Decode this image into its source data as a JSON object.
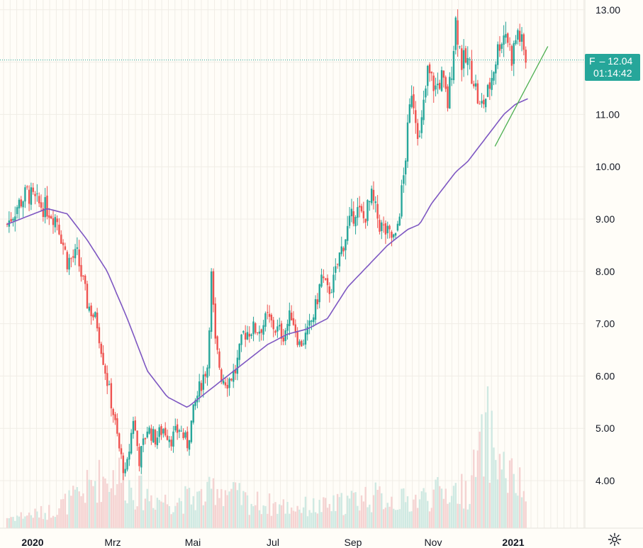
{
  "symbol": "F",
  "last_price_label": "12.04",
  "countdown": "01:14:42",
  "colors": {
    "up": "#26a69a",
    "down": "#ef5350",
    "ma": "#7e57c2",
    "trendline": "#4caf50",
    "last_price_line": "#26a69a",
    "vol_up": "#cfe9e2",
    "vol_down": "#f5d3d2",
    "background": "#fffdf8",
    "grid": "#f0ede6"
  },
  "settings_icon": "gear-icon",
  "chart_data": {
    "type": "candlestick",
    "x_labels": [
      "2020",
      "Mrz",
      "Mai",
      "Jul",
      "Sep",
      "Nov",
      "2021"
    ],
    "y_ticks": [
      "4.00",
      "5.00",
      "6.00",
      "7.00",
      "8.00",
      "9.00",
      "10.00",
      "11.00",
      "12.00",
      "13.00"
    ],
    "ylim": [
      3.1,
      13.2
    ],
    "grid": true,
    "last_price": 12.04,
    "price_series": {
      "month_index": [
        0,
        0.25,
        0.5,
        0.75,
        1.0,
        1.25,
        1.5,
        1.75,
        2.0,
        2.25,
        2.5,
        2.65,
        2.8,
        2.95,
        3.0,
        3.15,
        3.3,
        3.5,
        3.7,
        3.9,
        4.1,
        4.3,
        4.5,
        4.7,
        4.9,
        5.0,
        5.1,
        5.2,
        5.35,
        5.5,
        5.7,
        5.9,
        6.1,
        6.3,
        6.5,
        6.7,
        6.9,
        7.1,
        7.3,
        7.5,
        7.7,
        7.85,
        8.0,
        8.15,
        8.3,
        8.5,
        8.7,
        8.9,
        9.1,
        9.3,
        9.5,
        9.7,
        9.9,
        10.1,
        10.3,
        10.5,
        10.7,
        10.85,
        11.0,
        11.1,
        11.2,
        11.35,
        11.5,
        11.65,
        11.8,
        12.0,
        12.15,
        12.3,
        12.45,
        12.6,
        12.75,
        12.95
      ],
      "close": [
        8.9,
        9.25,
        9.5,
        9.3,
        9.2,
        9.0,
        8.2,
        8.3,
        7.4,
        7.0,
        5.9,
        5.3,
        4.6,
        4.1,
        4.3,
        5.2,
        4.4,
        5.0,
        4.8,
        5.0,
        4.8,
        5.0,
        4.7,
        5.5,
        6.0,
        6.2,
        7.9,
        6.6,
        6.0,
        5.9,
        6.1,
        6.8,
        6.9,
        6.9,
        7.1,
        6.9,
        6.8,
        7.2,
        6.6,
        6.8,
        7.3,
        7.9,
        7.6,
        7.8,
        8.3,
        8.8,
        9.2,
        9.0,
        9.4,
        8.9,
        8.7,
        8.6,
        9.8,
        11.5,
        10.5,
        11.8,
        11.5,
        11.7,
        11.2,
        11.9,
        12.8,
        12.0,
        12.0,
        11.7,
        11.1,
        11.4,
        11.9,
        12.4,
        12.6,
        12.1,
        12.6,
        12.05
      ]
    },
    "moving_average": {
      "month_index": [
        0,
        1.0,
        1.5,
        2.0,
        2.5,
        3.0,
        3.5,
        4.0,
        4.5,
        5.0,
        5.5,
        6.0,
        6.5,
        7.0,
        7.5,
        8.0,
        8.5,
        9.0,
        9.5,
        10.0,
        10.3,
        10.6,
        10.9,
        11.2,
        11.5,
        11.8,
        12.1,
        12.4,
        12.7,
        13.0
      ],
      "values": [
        8.9,
        9.2,
        9.1,
        8.6,
        8.0,
        7.1,
        6.1,
        5.6,
        5.4,
        5.7,
        6.0,
        6.3,
        6.6,
        6.8,
        6.9,
        7.1,
        7.7,
        8.1,
        8.5,
        8.8,
        8.9,
        9.3,
        9.6,
        9.9,
        10.1,
        10.4,
        10.7,
        11.0,
        11.2,
        11.3
      ]
    },
    "trendline": {
      "month_index": [
        12.18,
        13.5
      ],
      "values": [
        10.39,
        12.3
      ]
    },
    "volume": {
      "month_index": [
        0,
        1.0,
        1.8,
        2.2,
        2.8,
        3.2,
        4.0,
        5.0,
        5.2,
        6.0,
        7.0,
        8.0,
        9.0,
        10.0,
        11.0,
        11.5,
        12.0,
        12.2,
        12.4,
        13.0
      ],
      "relative": [
        0.1,
        0.15,
        0.3,
        0.45,
        0.5,
        0.35,
        0.25,
        0.3,
        0.4,
        0.25,
        0.2,
        0.2,
        0.3,
        0.25,
        0.35,
        0.35,
        0.9,
        0.7,
        0.55,
        0.3
      ]
    }
  }
}
